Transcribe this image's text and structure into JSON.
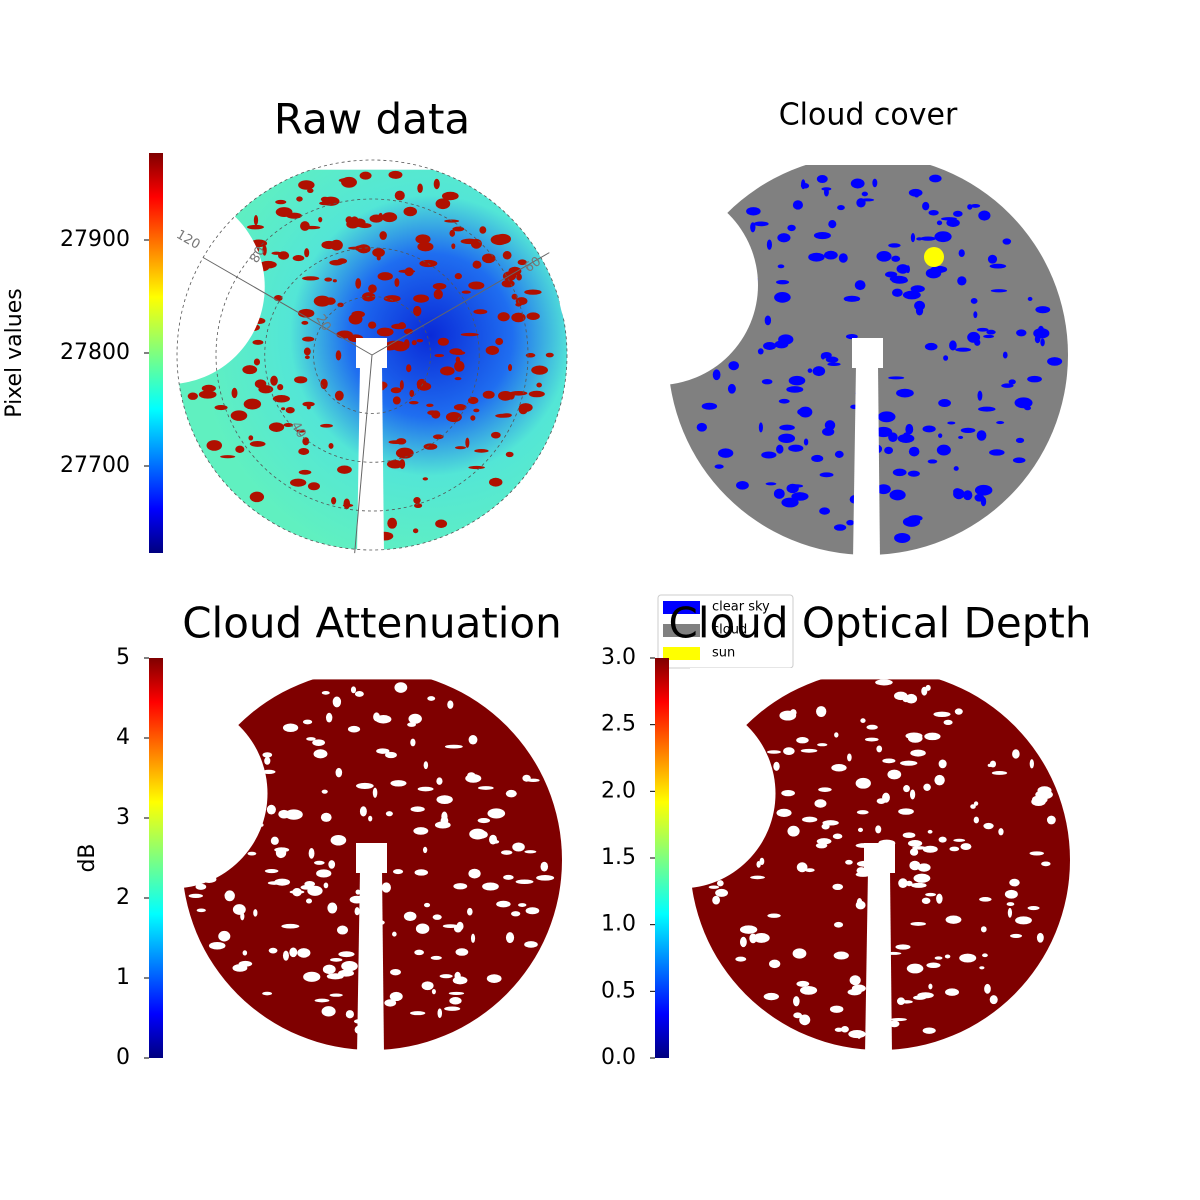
{
  "chart_data": [
    {
      "type": "image",
      "title": "Raw data",
      "colorbar": {
        "label": "Pixel values",
        "lim": [
          27623,
          27977
        ],
        "ticks": [
          27700,
          27800,
          27900
        ],
        "colormap": "jet"
      },
      "annotations": [
        "120",
        "80",
        "60",
        "40",
        "20"
      ]
    },
    {
      "type": "categorical-image",
      "title": "Cloud cover",
      "legend": [
        {
          "name": "clear sky",
          "color": "#0000ff"
        },
        {
          "name": "cloud",
          "color": "#808080"
        },
        {
          "name": "sun",
          "color": "#ffff00"
        }
      ]
    },
    {
      "type": "image",
      "title": "Cloud Attenuation",
      "colorbar": {
        "label": "dB",
        "lim": [
          0,
          5
        ],
        "ticks": [
          0,
          1,
          2,
          3,
          4,
          5
        ],
        "colormap": "jet"
      }
    },
    {
      "type": "image",
      "title": "Cloud Optical Depth",
      "colorbar": {
        "lim": [
          0,
          3
        ],
        "ticks": [
          {
            "value": 0,
            "label": "0.0"
          },
          {
            "value": 0.5,
            "label": "0.5"
          },
          {
            "value": 1,
            "label": "1.0"
          },
          {
            "value": 1.5,
            "label": "1.5"
          },
          {
            "value": 2,
            "label": "2.0"
          },
          {
            "value": 2.5,
            "label": "2.5"
          },
          {
            "value": 3,
            "label": "3.0"
          }
        ],
        "colormap": "jet"
      }
    }
  ]
}
